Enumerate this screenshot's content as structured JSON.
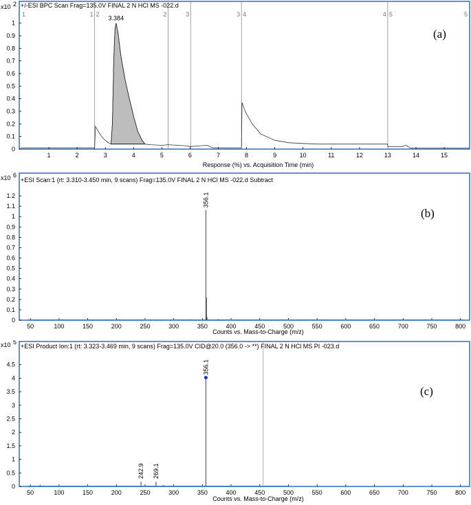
{
  "chart_data": [
    {
      "panel": "(a)",
      "type": "line",
      "title": "+/-ESI BPC Scan Frag=135.0V FINAL 2 N HCl MS  -022.d",
      "y_multiplier": "x10",
      "y_exponent": "2",
      "xlabel": "Response (%) vs. Acquisition Time (min)",
      "xlim": [
        0.0,
        15.9
      ],
      "ylim": [
        0,
        1.08
      ],
      "x_ticks": [
        1,
        2,
        3,
        4,
        5,
        6,
        7,
        8,
        9,
        10,
        11,
        12,
        13,
        14,
        15
      ],
      "y_ticks": [
        0,
        0.1,
        0.2,
        0.3,
        0.4,
        0.5,
        0.6,
        0.7,
        0.8,
        0.9,
        1
      ],
      "y_tick_labels": [
        "0",
        "0.1",
        "0.2",
        "0.3",
        "0.4",
        "0.5",
        "0.6",
        "0.7",
        "0.8",
        "0.9",
        "1"
      ],
      "peak_label": "3.384",
      "segment_markers": [
        {
          "x": 2.62,
          "labels": [
            "1",
            "2"
          ]
        },
        {
          "x": 5.22,
          "labels": [
            "2"
          ]
        },
        {
          "x": 6.02,
          "labels": [
            "3"
          ]
        },
        {
          "x": 7.82,
          "labels": [
            "3",
            "4"
          ]
        },
        {
          "x": 13.0,
          "labels": [
            "4",
            "5"
          ]
        }
      ],
      "edge_labels": {
        "left": "1",
        "right": "5"
      },
      "trace": [
        [
          0.0,
          0.01
        ],
        [
          2.6,
          0.01
        ],
        [
          2.62,
          0.0
        ],
        [
          2.65,
          0.18
        ],
        [
          2.75,
          0.14
        ],
        [
          2.9,
          0.09
        ],
        [
          3.05,
          0.06
        ],
        [
          3.15,
          0.045
        ],
        [
          3.2,
          0.04
        ],
        [
          3.25,
          0.2
        ],
        [
          3.3,
          0.72
        ],
        [
          3.34,
          0.95
        ],
        [
          3.38,
          1.0
        ],
        [
          3.45,
          0.92
        ],
        [
          3.55,
          0.74
        ],
        [
          3.7,
          0.55
        ],
        [
          3.85,
          0.4
        ],
        [
          4.0,
          0.26
        ],
        [
          4.15,
          0.14
        ],
        [
          4.3,
          0.07
        ],
        [
          4.4,
          0.04
        ],
        [
          4.6,
          0.035
        ],
        [
          5.0,
          0.03
        ],
        [
          5.2,
          0.035
        ],
        [
          5.6,
          0.03
        ],
        [
          5.9,
          0.025
        ],
        [
          6.0,
          0.02
        ],
        [
          6.3,
          0.025
        ],
        [
          6.6,
          0.03
        ],
        [
          6.8,
          0.01
        ],
        [
          7.82,
          0.01
        ],
        [
          7.84,
          0.37
        ],
        [
          7.95,
          0.3
        ],
        [
          8.2,
          0.2
        ],
        [
          8.5,
          0.12
        ],
        [
          9.0,
          0.07
        ],
        [
          9.5,
          0.05
        ],
        [
          10.5,
          0.04
        ],
        [
          12.0,
          0.04
        ],
        [
          12.98,
          0.04
        ],
        [
          13.02,
          0.02
        ],
        [
          13.5,
          0.02
        ],
        [
          13.65,
          0.03
        ],
        [
          13.8,
          0.008
        ],
        [
          15.9,
          0.008
        ]
      ],
      "shaded_peak": {
        "from": 3.2,
        "to": 4.4
      },
      "annotation": "(a)"
    },
    {
      "panel": "(b)",
      "type": "line",
      "title": "+ESI Scan:1 (rt: 3.310-3.450 min, 9 scans) Frag=135.0V FINAL 2 N HCl MS  -022.d  Subtract",
      "y_multiplier": "x10",
      "y_exponent": "6",
      "xlabel": "Counts vs. Mass-to-Charge (m/z)",
      "xlim": [
        33,
        816
      ],
      "ylim": [
        0,
        1.3
      ],
      "x_ticks": [
        50,
        100,
        150,
        200,
        250,
        300,
        350,
        400,
        450,
        500,
        550,
        600,
        650,
        700,
        750,
        800
      ],
      "y_ticks": [
        0,
        0.1,
        0.2,
        0.3,
        0.4,
        0.5,
        0.6,
        0.7,
        0.8,
        0.9,
        1,
        1.1,
        1.2
      ],
      "y_tick_labels": [
        "0",
        "0.1",
        "0.2",
        "0.3",
        "0.4",
        "0.5",
        "0.6",
        "0.7",
        "0.8",
        "0.9",
        "1",
        "1.1",
        "1.2"
      ],
      "peaks": [
        {
          "x": 356.1,
          "y": 1.06,
          "label": "356.1"
        },
        {
          "x": 357.1,
          "y": 0.22
        },
        {
          "x": 358.1,
          "y": 0.03
        },
        {
          "x": 378.0,
          "y": 0.01
        },
        {
          "x": 330.0,
          "y": 0.005
        }
      ],
      "annotation": "(b)"
    },
    {
      "panel": "(c)",
      "type": "line",
      "title": "+ESI Product Ion:1 (rt: 3.323-3.469 min, 9 scans) Frag=135.0V CID@20.0 (356.0 -> **) FINAL 2 N HCl MS PI  -023.d",
      "y_multiplier": "x10",
      "y_exponent": "5",
      "xlabel": "Counts vs. Mass-to-Charge (m/z)",
      "xlim": [
        33,
        816
      ],
      "ylim": [
        0,
        4.95
      ],
      "x_ticks": [
        50,
        100,
        150,
        200,
        250,
        300,
        350,
        400,
        450,
        500,
        550,
        600,
        650,
        700,
        750,
        800
      ],
      "y_ticks": [
        0,
        0.5,
        1,
        1.5,
        2,
        2.5,
        3,
        3.5,
        4,
        4.5
      ],
      "y_tick_labels": [
        "0",
        "0.5",
        "1",
        "1.5",
        "2",
        "2.5",
        "3",
        "3.5",
        "4",
        "4.5"
      ],
      "peaks": [
        {
          "x": 67.0,
          "y": 0.06
        },
        {
          "x": 200.0,
          "y": 0.05
        },
        {
          "x": 242.9,
          "y": 0.18,
          "label": "242.9"
        },
        {
          "x": 269.1,
          "y": 0.18,
          "label": "269.1"
        },
        {
          "x": 282.0,
          "y": 0.05
        },
        {
          "x": 356.1,
          "y": 4.02,
          "label": "356.1"
        }
      ],
      "precursor_marker": {
        "x": 356.1,
        "y": 4.02
      },
      "baseline_end": 500,
      "reference_line_x": 456,
      "annotation": "(c)"
    }
  ],
  "colors": {
    "frame": "#2e6cc0",
    "trace": "#333333",
    "shade": "#bdbdbd",
    "marker": "#1a2fcf",
    "segment": "#8a8a8a",
    "baseline": "#2e6cc0"
  }
}
